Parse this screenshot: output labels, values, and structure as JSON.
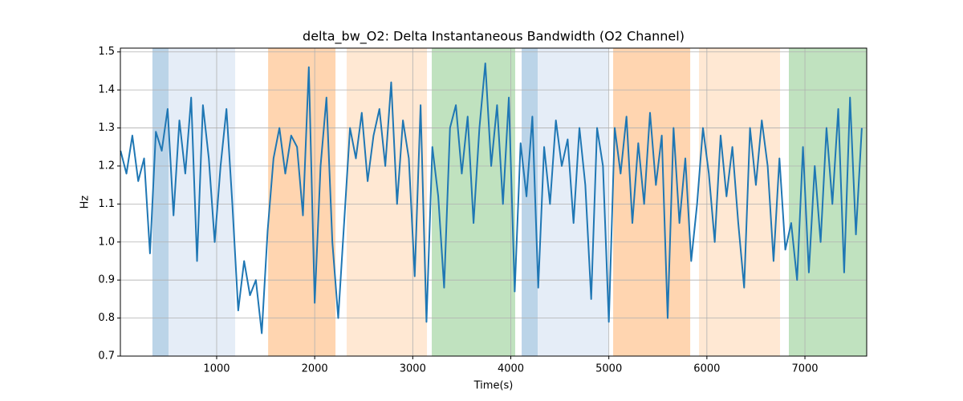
{
  "chart_data": {
    "type": "line",
    "title": "delta_bw_O2: Delta Instantaneous Bandwidth (O2 Channel)",
    "xlabel": "Time(s)",
    "ylabel": "Hz",
    "x": [
      20,
      80,
      140,
      200,
      260,
      320,
      380,
      440,
      500,
      560,
      620,
      680,
      740,
      800,
      860,
      920,
      980,
      1040,
      1100,
      1160,
      1220,
      1280,
      1340,
      1400,
      1460,
      1520,
      1580,
      1640,
      1700,
      1760,
      1820,
      1880,
      1940,
      2000,
      2060,
      2120,
      2180,
      2240,
      2300,
      2360,
      2420,
      2480,
      2540,
      2600,
      2660,
      2720,
      2780,
      2840,
      2900,
      2960,
      3020,
      3080,
      3140,
      3200,
      3260,
      3320,
      3380,
      3440,
      3500,
      3560,
      3620,
      3680,
      3740,
      3800,
      3860,
      3920,
      3980,
      4040,
      4100,
      4160,
      4220,
      4280,
      4340,
      4400,
      4460,
      4520,
      4580,
      4640,
      4700,
      4760,
      4820,
      4880,
      4940,
      5000,
      5060,
      5120,
      5180,
      5240,
      5300,
      5360,
      5420,
      5480,
      5540,
      5600,
      5660,
      5720,
      5780,
      5840,
      5900,
      5960,
      6020,
      6080,
      6140,
      6200,
      6260,
      6320,
      6380,
      6440,
      6500,
      6560,
      6620,
      6680,
      6740,
      6800,
      6860,
      6920,
      6980,
      7040,
      7100,
      7160,
      7220,
      7280,
      7340,
      7400,
      7460,
      7520,
      7580
    ],
    "values": [
      1.24,
      1.18,
      1.28,
      1.16,
      1.22,
      0.97,
      1.29,
      1.24,
      1.35,
      1.07,
      1.32,
      1.18,
      1.38,
      0.95,
      1.36,
      1.22,
      1.0,
      1.2,
      1.35,
      1.1,
      0.82,
      0.95,
      0.86,
      0.9,
      0.76,
      1.03,
      1.22,
      1.3,
      1.18,
      1.28,
      1.25,
      1.07,
      1.46,
      0.84,
      1.2,
      1.38,
      1.0,
      0.8,
      1.05,
      1.3,
      1.22,
      1.34,
      1.16,
      1.28,
      1.35,
      1.2,
      1.42,
      1.1,
      1.32,
      1.22,
      0.91,
      1.36,
      0.79,
      1.25,
      1.12,
      0.88,
      1.3,
      1.36,
      1.18,
      1.33,
      1.05,
      1.3,
      1.47,
      1.2,
      1.36,
      1.1,
      1.38,
      0.87,
      1.26,
      1.12,
      1.33,
      0.88,
      1.25,
      1.1,
      1.32,
      1.2,
      1.27,
      1.05,
      1.3,
      1.15,
      0.85,
      1.3,
      1.2,
      0.79,
      1.3,
      1.18,
      1.33,
      1.05,
      1.26,
      1.1,
      1.34,
      1.15,
      1.28,
      0.8,
      1.3,
      1.05,
      1.22,
      0.95,
      1.1,
      1.3,
      1.18,
      1.0,
      1.28,
      1.12,
      1.25,
      1.05,
      0.88,
      1.3,
      1.15,
      1.32,
      1.2,
      0.95,
      1.22,
      0.98,
      1.05,
      0.9,
      1.25,
      0.92,
      1.2,
      1.0,
      1.3,
      1.1,
      1.35,
      0.92,
      1.38,
      1.02,
      1.3
    ],
    "color": "#1f77b4",
    "spans": [
      {
        "x0": 345,
        "x1": 509,
        "color": "#bbd4e8"
      },
      {
        "x0": 509,
        "x1": 1189,
        "color": "#e5edf7"
      },
      {
        "x0": 1525,
        "x1": 2212,
        "color": "#ffd5b0"
      },
      {
        "x0": 2326,
        "x1": 3145,
        "color": "#ffe8d3"
      },
      {
        "x0": 3194,
        "x1": 4045,
        "color": "#c0e2bf"
      },
      {
        "x0": 4111,
        "x1": 4275,
        "color": "#bbd4e8"
      },
      {
        "x0": 4275,
        "x1": 4995,
        "color": "#e5edf7"
      },
      {
        "x0": 5044,
        "x1": 5830,
        "color": "#ffd5b0"
      },
      {
        "x0": 5920,
        "x1": 6746,
        "color": "#ffe8d3"
      },
      {
        "x0": 6836,
        "x1": 7630,
        "color": "#c0e2bf"
      }
    ],
    "xlim": [
      18,
      7630
    ],
    "xticks": [
      1000,
      2000,
      3000,
      4000,
      5000,
      6000,
      7000
    ],
    "ylim": [
      0.7,
      1.51
    ],
    "yticks": [
      0.7,
      0.8,
      0.9,
      {
        "value": 1,
        "label": "1.0"
      },
      1.1,
      1.2,
      1.3,
      1.4,
      1.5
    ],
    "grid": true
  }
}
